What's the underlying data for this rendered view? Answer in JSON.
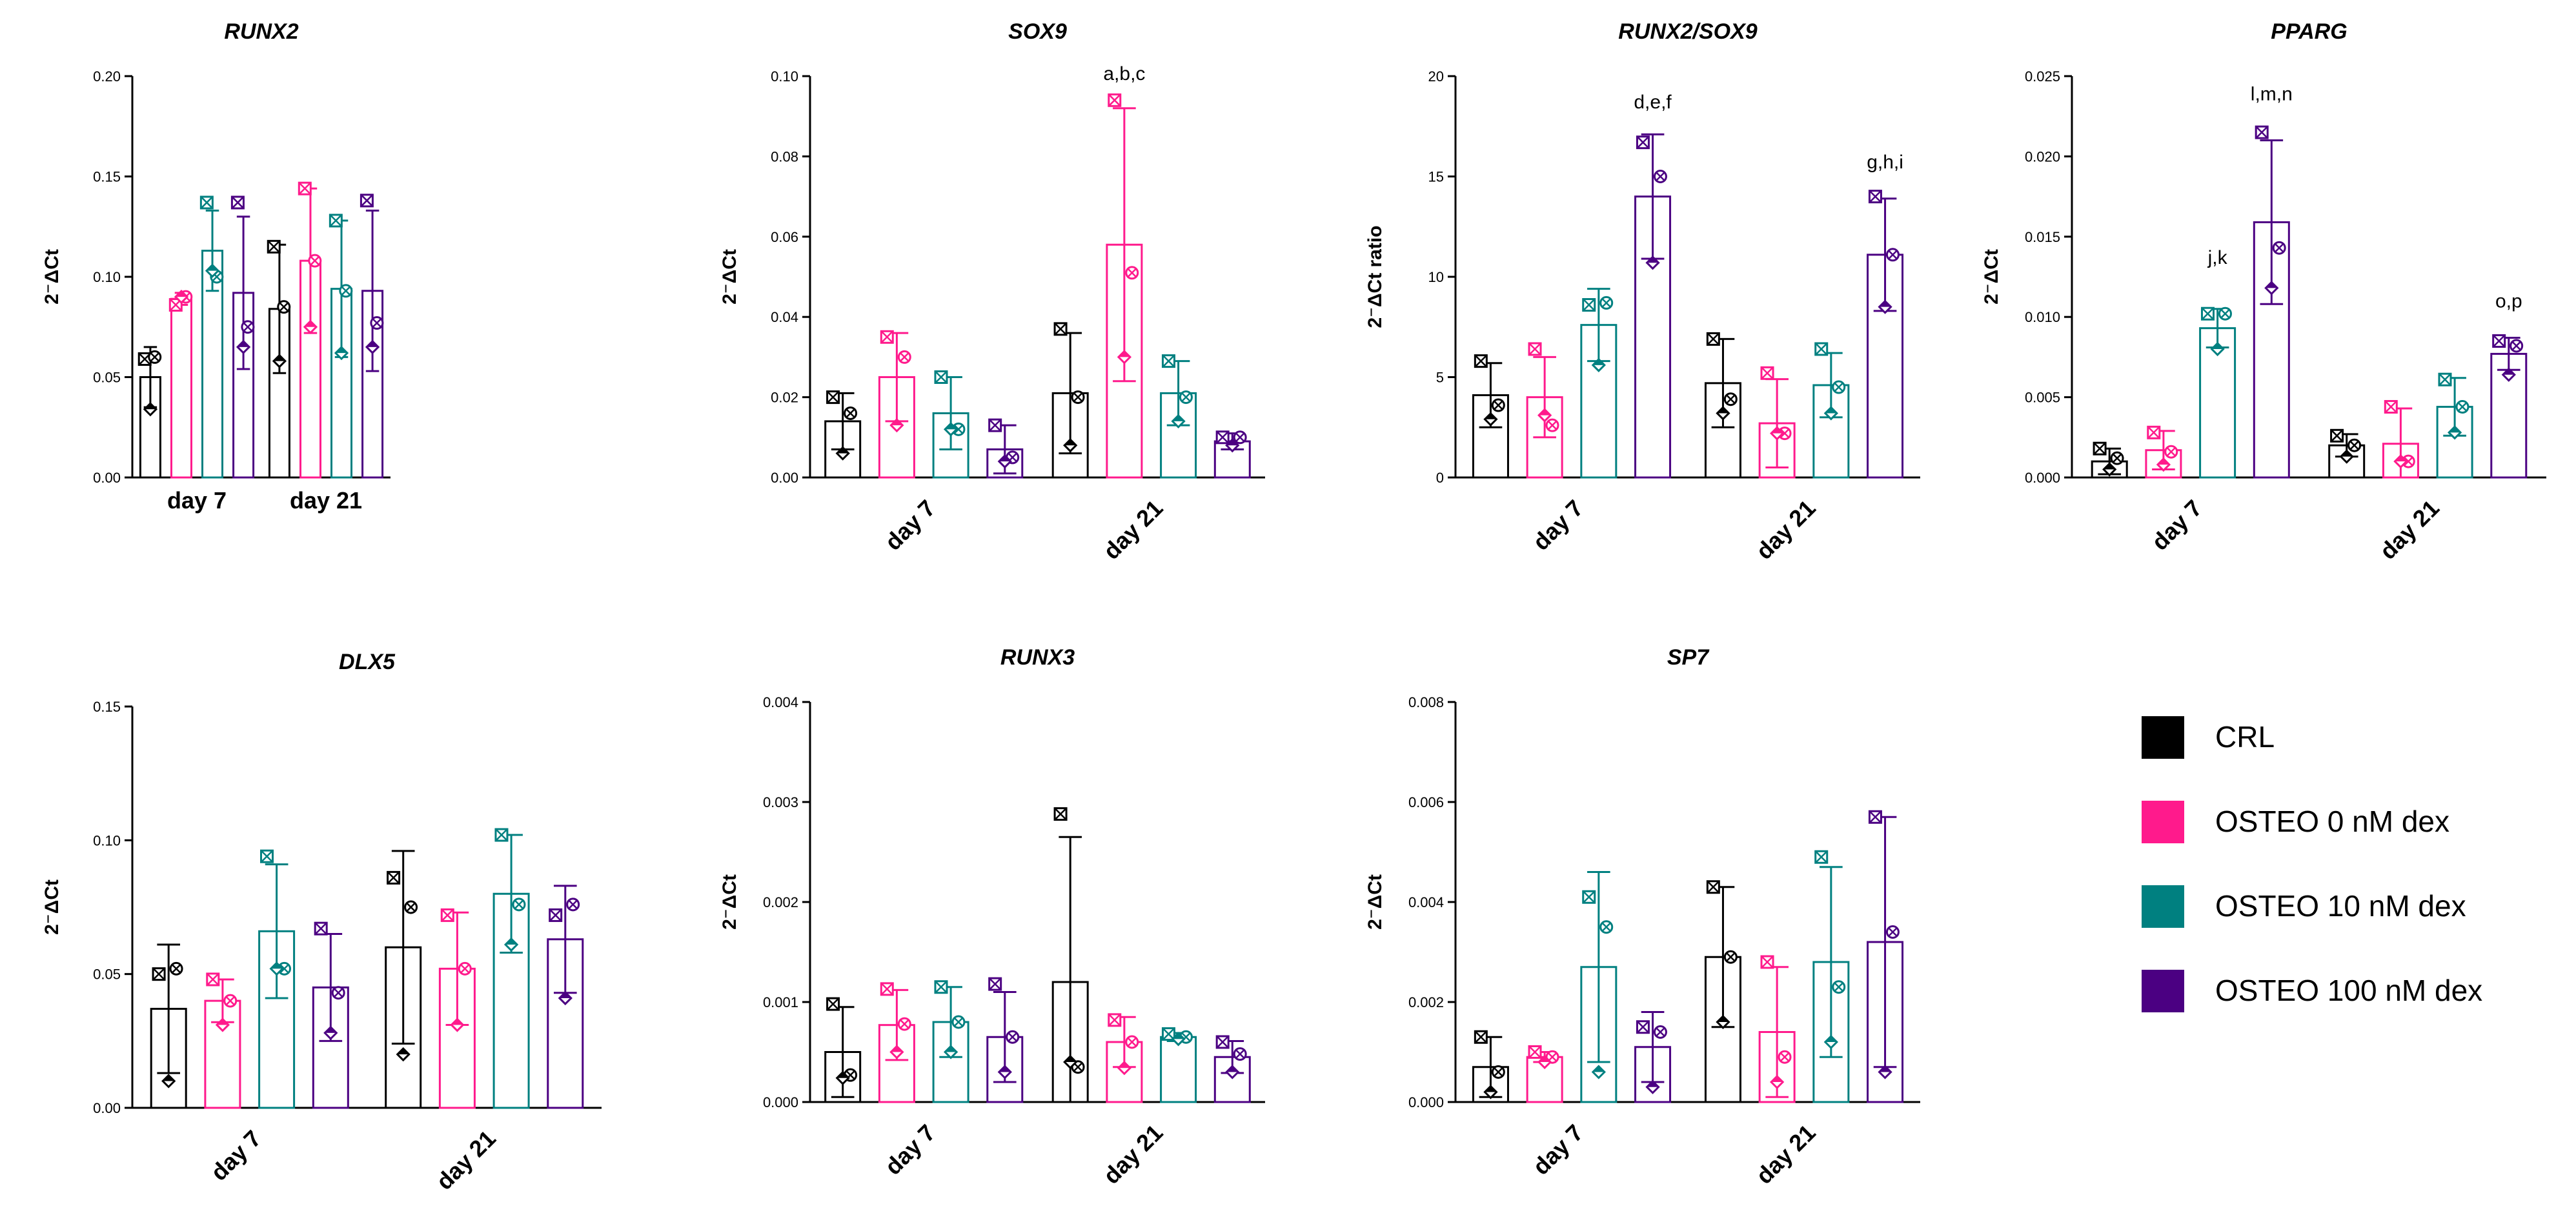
{
  "series_colors": {
    "CRL": "#000000",
    "OSTEO 0 nM dex": "#ff1a8c",
    "OSTEO 10 nM dex": "#008080",
    "OSTEO 100 nM dex": "#4b0082"
  },
  "legend": {
    "items": [
      {
        "label": "CRL",
        "color": "#000000"
      },
      {
        "label": "OSTEO 0 nM dex",
        "color": "#ff1a8c"
      },
      {
        "label": "OSTEO 10 nM dex",
        "color": "#008080"
      },
      {
        "label": "OSTEO 100 nM dex",
        "color": "#4b0082"
      }
    ]
  },
  "chart_data": [
    {
      "type": "bar",
      "title": "RUNX2",
      "ylabel": "2⁻ΔCt",
      "ylim": [
        0,
        0.2
      ],
      "yticks": [
        "0.00",
        "0.05",
        "0.10",
        "0.15",
        "0.20"
      ],
      "rotate_categories": false,
      "categories": [
        "day 7",
        "day 21"
      ],
      "series": [
        {
          "name": "CRL",
          "values": [
            0.05,
            0.084
          ],
          "err": [
            0.015,
            0.032
          ],
          "points": [
            [
              0.059,
              0.06,
              0.034
            ],
            [
              0.115,
              0.085,
              0.058
            ]
          ]
        },
        {
          "name": "OSTEO 0 nM dex",
          "values": [
            0.089,
            0.108
          ],
          "err": [
            0.003,
            0.036
          ],
          "points": [
            [
              0.086,
              0.09,
              0.09
            ],
            [
              0.144,
              0.108,
              0.075
            ]
          ]
        },
        {
          "name": "OSTEO 10 nM dex",
          "values": [
            0.113,
            0.094
          ],
          "err": [
            0.02,
            0.034
          ],
          "points": [
            [
              0.137,
              0.1,
              0.103
            ],
            [
              0.128,
              0.093,
              0.062
            ]
          ]
        },
        {
          "name": "OSTEO 100 nM dex",
          "values": [
            0.092,
            0.093
          ],
          "err": [
            0.038,
            0.04
          ],
          "points": [
            [
              0.137,
              0.075,
              0.065
            ],
            [
              0.138,
              0.077,
              0.065
            ]
          ]
        }
      ],
      "annotations": []
    },
    {
      "type": "bar",
      "title": "SOX9",
      "ylabel": "2⁻ΔCt",
      "ylim": [
        0,
        0.1
      ],
      "yticks": [
        "0.00",
        "0.02",
        "0.04",
        "0.06",
        "0.08",
        "0.10"
      ],
      "rotate_categories": true,
      "categories": [
        "day 7",
        "day 21"
      ],
      "series": [
        {
          "name": "CRL",
          "values": [
            0.014,
            0.021
          ],
          "err": [
            0.007,
            0.015
          ],
          "points": [
            [
              0.02,
              0.016,
              0.006
            ],
            [
              0.037,
              0.02,
              0.008
            ]
          ]
        },
        {
          "name": "OSTEO 0 nM dex",
          "values": [
            0.025,
            0.058
          ],
          "err": [
            0.011,
            0.034
          ],
          "points": [
            [
              0.035,
              0.03,
              0.013
            ],
            [
              0.094,
              0.051,
              0.03
            ]
          ]
        },
        {
          "name": "OSTEO 10 nM dex",
          "values": [
            0.016,
            0.021
          ],
          "err": [
            0.009,
            0.008
          ],
          "points": [
            [
              0.025,
              0.012,
              0.012
            ],
            [
              0.029,
              0.02,
              0.014
            ]
          ]
        },
        {
          "name": "OSTEO 100 nM dex",
          "values": [
            0.007,
            0.009
          ],
          "err": [
            0.006,
            0.002
          ],
          "points": [
            [
              0.013,
              0.005,
              0.004
            ],
            [
              0.01,
              0.01,
              0.008
            ]
          ]
        }
      ],
      "annotations": [
        {
          "text": "a,b,c",
          "category": 1,
          "series": 1,
          "y": 0.099
        }
      ]
    },
    {
      "type": "bar",
      "title": "RUNX2/SOX9",
      "ylabel": "2⁻ΔCt ratio",
      "ylim": [
        0,
        20
      ],
      "yticks": [
        "0",
        "5",
        "10",
        "15",
        "20"
      ],
      "rotate_categories": true,
      "categories": [
        "day 7",
        "day 21"
      ],
      "series": [
        {
          "name": "CRL",
          "values": [
            4.1,
            4.7
          ],
          "err": [
            1.6,
            2.2
          ],
          "points": [
            [
              5.8,
              3.6,
              2.9
            ],
            [
              6.9,
              3.9,
              3.2
            ]
          ]
        },
        {
          "name": "OSTEO 0 nM dex",
          "values": [
            4.0,
            2.7
          ],
          "err": [
            2.0,
            2.2
          ],
          "points": [
            [
              6.4,
              2.6,
              3.1
            ],
            [
              5.2,
              2.2,
              2.2
            ]
          ]
        },
        {
          "name": "OSTEO 10 nM dex",
          "values": [
            7.6,
            4.6
          ],
          "err": [
            1.8,
            1.6
          ],
          "points": [
            [
              8.6,
              8.7,
              5.6
            ],
            [
              6.4,
              4.5,
              3.2
            ]
          ]
        },
        {
          "name": "OSTEO 100 nM dex",
          "values": [
            14.0,
            11.1
          ],
          "err": [
            3.1,
            2.8
          ],
          "points": [
            [
              16.7,
              15.0,
              10.7
            ],
            [
              14.0,
              11.1,
              8.5
            ]
          ]
        }
      ],
      "annotations": [
        {
          "text": "d,e,f",
          "category": 0,
          "series": 3,
          "y": 18.4
        },
        {
          "text": "g,h,i",
          "category": 1,
          "series": 3,
          "y": 15.4
        }
      ]
    },
    {
      "type": "bar",
      "title": "PPARG",
      "ylabel": "2⁻ΔCt",
      "ylim": [
        0,
        0.025
      ],
      "yticks": [
        "0.000",
        "0.005",
        "0.010",
        "0.015",
        "0.020",
        "0.025"
      ],
      "rotate_categories": true,
      "categories": [
        "day 7",
        "day 21"
      ],
      "series": [
        {
          "name": "CRL",
          "values": [
            0.001,
            0.002
          ],
          "err": [
            0.0008,
            0.0007
          ],
          "points": [
            [
              0.0018,
              0.0012,
              0.0005
            ],
            [
              0.0026,
              0.002,
              0.0013
            ]
          ]
        },
        {
          "name": "OSTEO 0 nM dex",
          "values": [
            0.0017,
            0.0021
          ],
          "err": [
            0.0012,
            0.0022
          ],
          "points": [
            [
              0.0028,
              0.0016,
              0.0008
            ],
            [
              0.0044,
              0.001,
              0.001
            ]
          ]
        },
        {
          "name": "OSTEO 10 nM dex",
          "values": [
            0.0093,
            0.0044
          ],
          "err": [
            0.0012,
            0.0018
          ],
          "points": [
            [
              0.0102,
              0.0102,
              0.008
            ],
            [
              0.0061,
              0.0044,
              0.0028
            ]
          ]
        },
        {
          "name": "OSTEO 100 nM dex",
          "values": [
            0.0159,
            0.0077
          ],
          "err": [
            0.0051,
            0.001
          ],
          "points": [
            [
              0.0215,
              0.0143,
              0.0118
            ],
            [
              0.0085,
              0.0082,
              0.0064
            ]
          ]
        }
      ],
      "annotations": [
        {
          "text": "j,k",
          "category": 0,
          "series": 2,
          "y": 0.0133
        },
        {
          "text": "l,m,n",
          "category": 0,
          "series": 3,
          "y": 0.0235
        },
        {
          "text": "o,p",
          "category": 1,
          "series": 3,
          "y": 0.0106
        }
      ]
    },
    {
      "type": "bar",
      "title": "DLX5",
      "ylabel": "2⁻ΔCt",
      "ylim": [
        0,
        0.15
      ],
      "yticks": [
        "0.00",
        "0.05",
        "0.10",
        "0.15"
      ],
      "rotate_categories": true,
      "categories": [
        "day 7",
        "day 21"
      ],
      "series": [
        {
          "name": "CRL",
          "values": [
            0.037,
            0.06
          ],
          "err": [
            0.024,
            0.036
          ],
          "points": [
            [
              0.05,
              0.052,
              0.01
            ],
            [
              0.086,
              0.075,
              0.02
            ]
          ]
        },
        {
          "name": "OSTEO 0 nM dex",
          "values": [
            0.04,
            0.052
          ],
          "err": [
            0.008,
            0.021
          ],
          "points": [
            [
              0.048,
              0.04,
              0.031
            ],
            [
              0.072,
              0.052,
              0.031
            ]
          ]
        },
        {
          "name": "OSTEO 10 nM dex",
          "values": [
            0.066,
            0.08
          ],
          "err": [
            0.025,
            0.022
          ],
          "points": [
            [
              0.094,
              0.052,
              0.052
            ],
            [
              0.102,
              0.076,
              0.061
            ]
          ]
        },
        {
          "name": "OSTEO 100 nM dex",
          "values": [
            0.045,
            0.063
          ],
          "err": [
            0.02,
            0.02
          ],
          "points": [
            [
              0.067,
              0.043,
              0.028
            ],
            [
              0.072,
              0.076,
              0.041
            ]
          ]
        }
      ],
      "annotations": []
    },
    {
      "type": "bar",
      "title": "RUNX3",
      "ylabel": "2⁻ΔCt",
      "ylim": [
        0,
        0.004
      ],
      "yticks": [
        "0.000",
        "0.001",
        "0.002",
        "0.003",
        "0.004"
      ],
      "rotate_categories": true,
      "categories": [
        "day 7",
        "day 21"
      ],
      "series": [
        {
          "name": "CRL",
          "values": [
            0.0005,
            0.0012
          ],
          "err": [
            0.00045,
            0.00145
          ],
          "points": [
            [
              0.00098,
              0.00027,
              0.00024
            ],
            [
              0.00288,
              0.00035,
              0.0004
            ]
          ]
        },
        {
          "name": "OSTEO 0 nM dex",
          "values": [
            0.00077,
            0.0006
          ],
          "err": [
            0.00035,
            0.00025
          ],
          "points": [
            [
              0.00113,
              0.00078,
              0.0005
            ],
            [
              0.00082,
              0.0006,
              0.00034
            ]
          ]
        },
        {
          "name": "OSTEO 10 nM dex",
          "values": [
            0.0008,
            0.00065
          ],
          "err": [
            0.00035,
            4e-05
          ],
          "points": [
            [
              0.00115,
              0.0008,
              0.0005
            ],
            [
              0.00068,
              0.00065,
              0.00063
            ]
          ]
        },
        {
          "name": "OSTEO 100 nM dex",
          "values": [
            0.00065,
            0.00045
          ],
          "err": [
            0.00045,
            0.00016
          ],
          "points": [
            [
              0.00118,
              0.00065,
              0.0003
            ],
            [
              0.0006,
              0.00048,
              0.0003
            ]
          ]
        }
      ],
      "annotations": []
    },
    {
      "type": "bar",
      "title": "SP7",
      "ylabel": "2⁻ΔCt",
      "ylim": [
        0,
        0.008
      ],
      "yticks": [
        "0.000",
        "0.002",
        "0.004",
        "0.006",
        "0.008"
      ],
      "rotate_categories": true,
      "categories": [
        "day 7",
        "day 21"
      ],
      "series": [
        {
          "name": "CRL",
          "values": [
            0.0007,
            0.0029
          ],
          "err": [
            0.0006,
            0.0014
          ],
          "points": [
            [
              0.0013,
              0.0006,
              0.0002
            ],
            [
              0.0043,
              0.0029,
              0.0016
            ]
          ]
        },
        {
          "name": "OSTEO 0 nM dex",
          "values": [
            0.0009,
            0.0014
          ],
          "err": [
            0.0001,
            0.0013
          ],
          "points": [
            [
              0.001,
              0.0009,
              0.0008
            ],
            [
              0.0028,
              0.0009,
              0.0004
            ]
          ]
        },
        {
          "name": "OSTEO 10 nM dex",
          "values": [
            0.0027,
            0.0028
          ],
          "err": [
            0.0019,
            0.0019
          ],
          "points": [
            [
              0.0041,
              0.0035,
              0.0006
            ],
            [
              0.0049,
              0.0023,
              0.0012
            ]
          ]
        },
        {
          "name": "OSTEO 100 nM dex",
          "values": [
            0.0011,
            0.0032
          ],
          "err": [
            0.0007,
            0.0025
          ],
          "points": [
            [
              0.0015,
              0.0014,
              0.0003
            ],
            [
              0.0057,
              0.0034,
              0.0006
            ]
          ]
        }
      ],
      "annotations": []
    }
  ]
}
